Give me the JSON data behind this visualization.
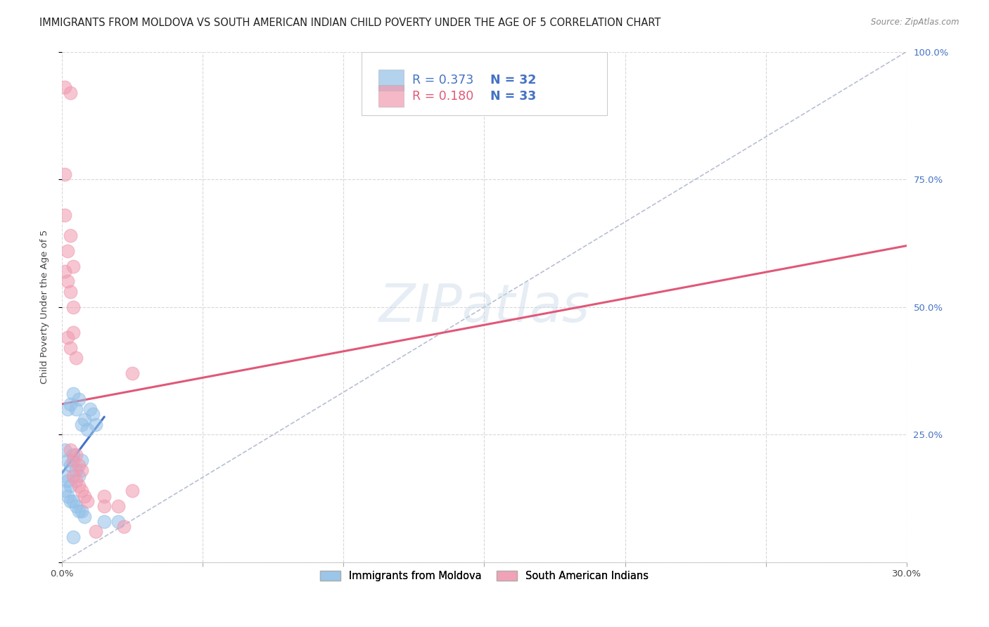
{
  "title": "IMMIGRANTS FROM MOLDOVA VS SOUTH AMERICAN INDIAN CHILD POVERTY UNDER THE AGE OF 5 CORRELATION CHART",
  "source": "Source: ZipAtlas.com",
  "ylabel": "Child Poverty Under the Age of 5",
  "watermark": "ZIPatlas",
  "xmin": 0.0,
  "xmax": 0.3,
  "ymin": 0.0,
  "ymax": 1.0,
  "xtick_positions": [
    0.0,
    0.05,
    0.1,
    0.15,
    0.2,
    0.25,
    0.3
  ],
  "xtick_labels": [
    "0.0%",
    "",
    "",
    "",
    "",
    "",
    "30.0%"
  ],
  "ytick_positions": [
    0.0,
    0.25,
    0.5,
    0.75,
    1.0
  ],
  "ytick_labels_right": [
    "",
    "25.0%",
    "50.0%",
    "75.0%",
    "100.0%"
  ],
  "blue_scatter": [
    [
      0.001,
      0.22
    ],
    [
      0.002,
      0.3
    ],
    [
      0.003,
      0.31
    ],
    [
      0.004,
      0.33
    ],
    [
      0.005,
      0.3
    ],
    [
      0.006,
      0.32
    ],
    [
      0.007,
      0.27
    ],
    [
      0.008,
      0.28
    ],
    [
      0.009,
      0.26
    ],
    [
      0.01,
      0.3
    ],
    [
      0.011,
      0.29
    ],
    [
      0.012,
      0.27
    ],
    [
      0.002,
      0.2
    ],
    [
      0.003,
      0.19
    ],
    [
      0.004,
      0.21
    ],
    [
      0.005,
      0.18
    ],
    [
      0.006,
      0.17
    ],
    [
      0.007,
      0.2
    ],
    [
      0.001,
      0.17
    ],
    [
      0.002,
      0.16
    ],
    [
      0.003,
      0.15
    ],
    [
      0.001,
      0.14
    ],
    [
      0.002,
      0.13
    ],
    [
      0.003,
      0.12
    ],
    [
      0.004,
      0.12
    ],
    [
      0.005,
      0.11
    ],
    [
      0.006,
      0.1
    ],
    [
      0.007,
      0.1
    ],
    [
      0.008,
      0.09
    ],
    [
      0.015,
      0.08
    ],
    [
      0.004,
      0.05
    ],
    [
      0.02,
      0.08
    ]
  ],
  "pink_scatter": [
    [
      0.001,
      0.93
    ],
    [
      0.003,
      0.92
    ],
    [
      0.001,
      0.76
    ],
    [
      0.003,
      0.64
    ],
    [
      0.002,
      0.61
    ],
    [
      0.004,
      0.58
    ],
    [
      0.002,
      0.55
    ],
    [
      0.003,
      0.53
    ],
    [
      0.004,
      0.5
    ],
    [
      0.001,
      0.68
    ],
    [
      0.001,
      0.57
    ],
    [
      0.002,
      0.44
    ],
    [
      0.003,
      0.42
    ],
    [
      0.004,
      0.45
    ],
    [
      0.005,
      0.4
    ],
    [
      0.003,
      0.22
    ],
    [
      0.004,
      0.2
    ],
    [
      0.005,
      0.21
    ],
    [
      0.006,
      0.19
    ],
    [
      0.007,
      0.18
    ],
    [
      0.004,
      0.17
    ],
    [
      0.005,
      0.16
    ],
    [
      0.006,
      0.15
    ],
    [
      0.007,
      0.14
    ],
    [
      0.008,
      0.13
    ],
    [
      0.009,
      0.12
    ],
    [
      0.015,
      0.13
    ],
    [
      0.025,
      0.37
    ],
    [
      0.012,
      0.06
    ],
    [
      0.022,
      0.07
    ],
    [
      0.015,
      0.11
    ],
    [
      0.02,
      0.11
    ],
    [
      0.025,
      0.14
    ]
  ],
  "blue_line": {
    "x0": 0.0,
    "y0": 0.175,
    "x1": 0.015,
    "y1": 0.285
  },
  "pink_line": {
    "x0": 0.0,
    "y0": 0.31,
    "x1": 0.3,
    "y1": 0.62
  },
  "ref_line": {
    "x0": 0.0,
    "y0": 0.0,
    "x1": 0.3,
    "y1": 1.0
  },
  "blue_color": "#92c0e8",
  "pink_color": "#f09ab0",
  "blue_line_color": "#4472c4",
  "pink_line_color": "#e05878",
  "ref_line_color": "#b0b8d0",
  "grid_color": "#d8d8d8",
  "legend_r1_color": "#4472c4",
  "legend_r2_color": "#e05878",
  "legend_n_color": "#4472c4",
  "right_axis_color": "#4472c4",
  "title_color": "#222222",
  "source_color": "#888888",
  "ylabel_color": "#444444"
}
